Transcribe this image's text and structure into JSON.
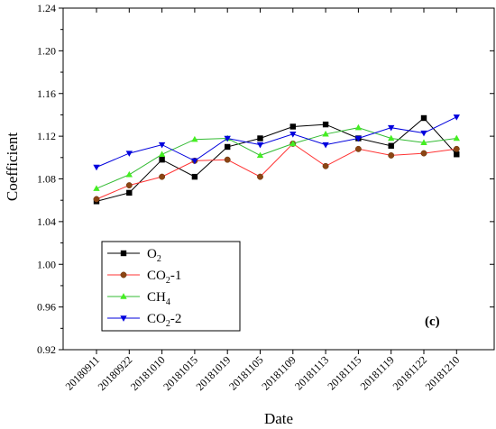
{
  "chart_data": {
    "type": "line",
    "title": "",
    "xlabel": "Date",
    "ylabel": "Coefficient",
    "panel_label": "(c)",
    "ylim": [
      0.92,
      1.24
    ],
    "yticks": [
      "0.92",
      "0.96",
      "1.00",
      "1.04",
      "1.08",
      "1.12",
      "1.16",
      "1.20",
      "1.24"
    ],
    "categories": [
      "20180911",
      "20180922",
      "20181010",
      "20181015",
      "20181019",
      "20181105",
      "20181109",
      "20181113",
      "20181115",
      "20181119",
      "20181122",
      "20181210"
    ],
    "legend_position": "bottom-left",
    "grid": false,
    "series": [
      {
        "name": "O",
        "sub": "2",
        "suffix": "",
        "color": "#000000",
        "marker": "square",
        "values": [
          1.059,
          1.067,
          1.098,
          1.082,
          1.11,
          1.118,
          1.129,
          1.131,
          1.118,
          1.111,
          1.137,
          1.103
        ]
      },
      {
        "name": "CO",
        "sub": "2",
        "suffix": "-1",
        "color": "#ff3333",
        "marker": "circle",
        "values": [
          1.061,
          1.074,
          1.082,
          1.097,
          1.098,
          1.082,
          1.113,
          1.092,
          1.108,
          1.102,
          1.104,
          1.108
        ]
      },
      {
        "name": "CH",
        "sub": "4",
        "suffix": "",
        "color": "#33bb33",
        "marker": "triangle-up",
        "values": [
          1.071,
          1.084,
          1.103,
          1.117,
          1.118,
          1.102,
          1.113,
          1.122,
          1.128,
          1.118,
          1.114,
          1.118
        ]
      },
      {
        "name": "CO",
        "sub": "2",
        "suffix": "-2",
        "color": "#0000dd",
        "marker": "triangle-down",
        "values": [
          1.091,
          1.104,
          1.112,
          1.097,
          1.118,
          1.112,
          1.122,
          1.112,
          1.118,
          1.128,
          1.123,
          1.138
        ]
      }
    ]
  }
}
